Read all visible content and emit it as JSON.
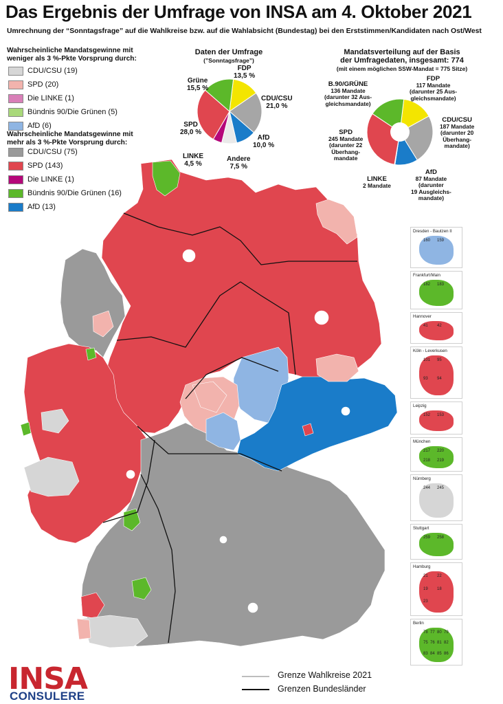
{
  "title": "Das Ergebnis der Umfrage von INSA am 4. Oktober 2021",
  "subtitle": "Umrechnung der “Sonntagsfrage” auf die Wahlkreise bzw. auf die Wahlabsicht (Bundestag) bei den Erststimmen/Kandidaten nach Ost/West",
  "legend_low": {
    "heading_1": "Wahrscheinliche Mandatsgewinne mit",
    "heading_2": "weniger als 3 %-Pkte Vorsprung durch:",
    "items": [
      {
        "label": "CDU/CSU (19)",
        "color": "#d6d6d6"
      },
      {
        "label": "SPD (20)",
        "color": "#f2b3ad"
      },
      {
        "label": "Die LINKE (1)",
        "color": "#d97fb8"
      },
      {
        "label": "Bündnis 90/Die Grünen (5)",
        "color": "#a9d97a"
      },
      {
        "label": "AfD (6)",
        "color": "#8fb5e3"
      }
    ]
  },
  "legend_high": {
    "heading_1": "Wahrscheinliche Mandatsgewinne mit",
    "heading_2": "mehr als 3 %-Pkte Vorsprung durch:",
    "items": [
      {
        "label": "CDU/CSU (75)",
        "color": "#9a9a9a"
      },
      {
        "label": "SPD (143)",
        "color": "#e0464f"
      },
      {
        "label": "Die LINKE (1)",
        "color": "#b5077a"
      },
      {
        "label": "Bündnis 90/Die Grünen (16)",
        "color": "#5cb82a"
      },
      {
        "label": "AfD (13)",
        "color": "#1a7cc9"
      }
    ]
  },
  "survey_pie": {
    "heading": "Daten der Umfrage",
    "subheading": "(”Sonntagsfrage”)",
    "slices": [
      {
        "party": "FDP",
        "value": 13.5,
        "value_text": "13,5 %",
        "color": "#f3e500"
      },
      {
        "party": "CDU/CSU",
        "value": 21.0,
        "value_text": "21,0 %",
        "color": "#a6a6a6"
      },
      {
        "party": "AfD",
        "value": 10.0,
        "value_text": "10,0 %",
        "color": "#1a7cc9"
      },
      {
        "party": "Andere",
        "value": 7.5,
        "value_text": "7,5 %",
        "color": "#eaeaea"
      },
      {
        "party": "LINKE",
        "value": 4.5,
        "value_text": "4,5 %",
        "color": "#b5077a"
      },
      {
        "party": "SPD",
        "value": 28.0,
        "value_text": "28,0 %",
        "color": "#e0464f"
      },
      {
        "party": "Grüne",
        "value": 15.5,
        "value_text": "15,5 %",
        "color": "#5cb82a"
      }
    ]
  },
  "seat_pie": {
    "heading_1": "Mandatsverteilung auf der Basis",
    "heading_2": "der Umfragedaten, insgesamt: 774",
    "subheading": "(mit einem möglichen SSW-Mandat = 775 Sitze)",
    "slices": [
      {
        "party": "FDP",
        "value": 117,
        "color": "#f3e500",
        "lines": [
          "FDP",
          "117 Mandate",
          "(darunter 25 Aus-",
          "gleichsmandate)"
        ]
      },
      {
        "party": "CDU/CSU",
        "value": 187,
        "color": "#a6a6a6",
        "lines": [
          "CDU/CSU",
          "187 Mandate",
          "(darunter 20",
          "Überhang-",
          "mandate)"
        ]
      },
      {
        "party": "AfD",
        "value": 87,
        "color": "#1a7cc9",
        "lines": [
          "AfD",
          "87 Mandate",
          "(darunter",
          "19 Ausgleichs-",
          "mandate)"
        ]
      },
      {
        "party": "LINKE",
        "value": 2,
        "color": "#b5077a",
        "lines": [
          "LINKE",
          "2 Mandate"
        ]
      },
      {
        "party": "SPD",
        "value": 245,
        "color": "#e0464f",
        "lines": [
          "SPD",
          "245 Mandate",
          "(darunter 22",
          "Überhang-",
          "mandate"
        ]
      },
      {
        "party": "B.90/GRÜNE",
        "value": 136,
        "color": "#5cb82a",
        "lines": [
          "B.90/GRÜNE",
          "136 Mandate",
          "(darunter 32 Aus-",
          "gleichsmandate)"
        ]
      }
    ]
  },
  "insets": [
    {
      "title": "Dresden - Bautzen II",
      "numbers": [
        "160",
        "159"
      ]
    },
    {
      "title": "Frankfurt/Main",
      "numbers": [
        "182",
        "183"
      ]
    },
    {
      "title": "Hannover",
      "numbers": [
        "41",
        "42"
      ]
    },
    {
      "title": "Köln - Leverkusen",
      "numbers": [
        "101",
        "95",
        "93",
        "94"
      ]
    },
    {
      "title": "Leipzig",
      "numbers": [
        "152",
        "153"
      ]
    },
    {
      "title": "München",
      "numbers": [
        "217",
        "220",
        "218",
        "219"
      ]
    },
    {
      "title": "Nürnberg",
      "numbers": [
        "244",
        "245"
      ]
    },
    {
      "title": "Stuttgart",
      "numbers": [
        "259",
        "258"
      ]
    },
    {
      "title": "Hamburg",
      "numbers": [
        "21",
        "22",
        "19",
        "18",
        "23"
      ]
    },
    {
      "title": "Berlin",
      "numbers": [
        "78",
        "77",
        "80",
        "79",
        "75",
        "76",
        "81",
        "82",
        "83",
        "84",
        "85",
        "86"
      ]
    }
  ],
  "map_legend": {
    "line_1": "Grenze Wahlkreise 2021",
    "line_2": "Grenzen Bundesländer",
    "line_1_color": "#bdbdbd",
    "line_2_color": "#111111"
  },
  "logo": {
    "line_1": "INSA",
    "line_2": "CONSULERE",
    "color_1": "#c8262f",
    "color_2": "#1d3f86"
  }
}
